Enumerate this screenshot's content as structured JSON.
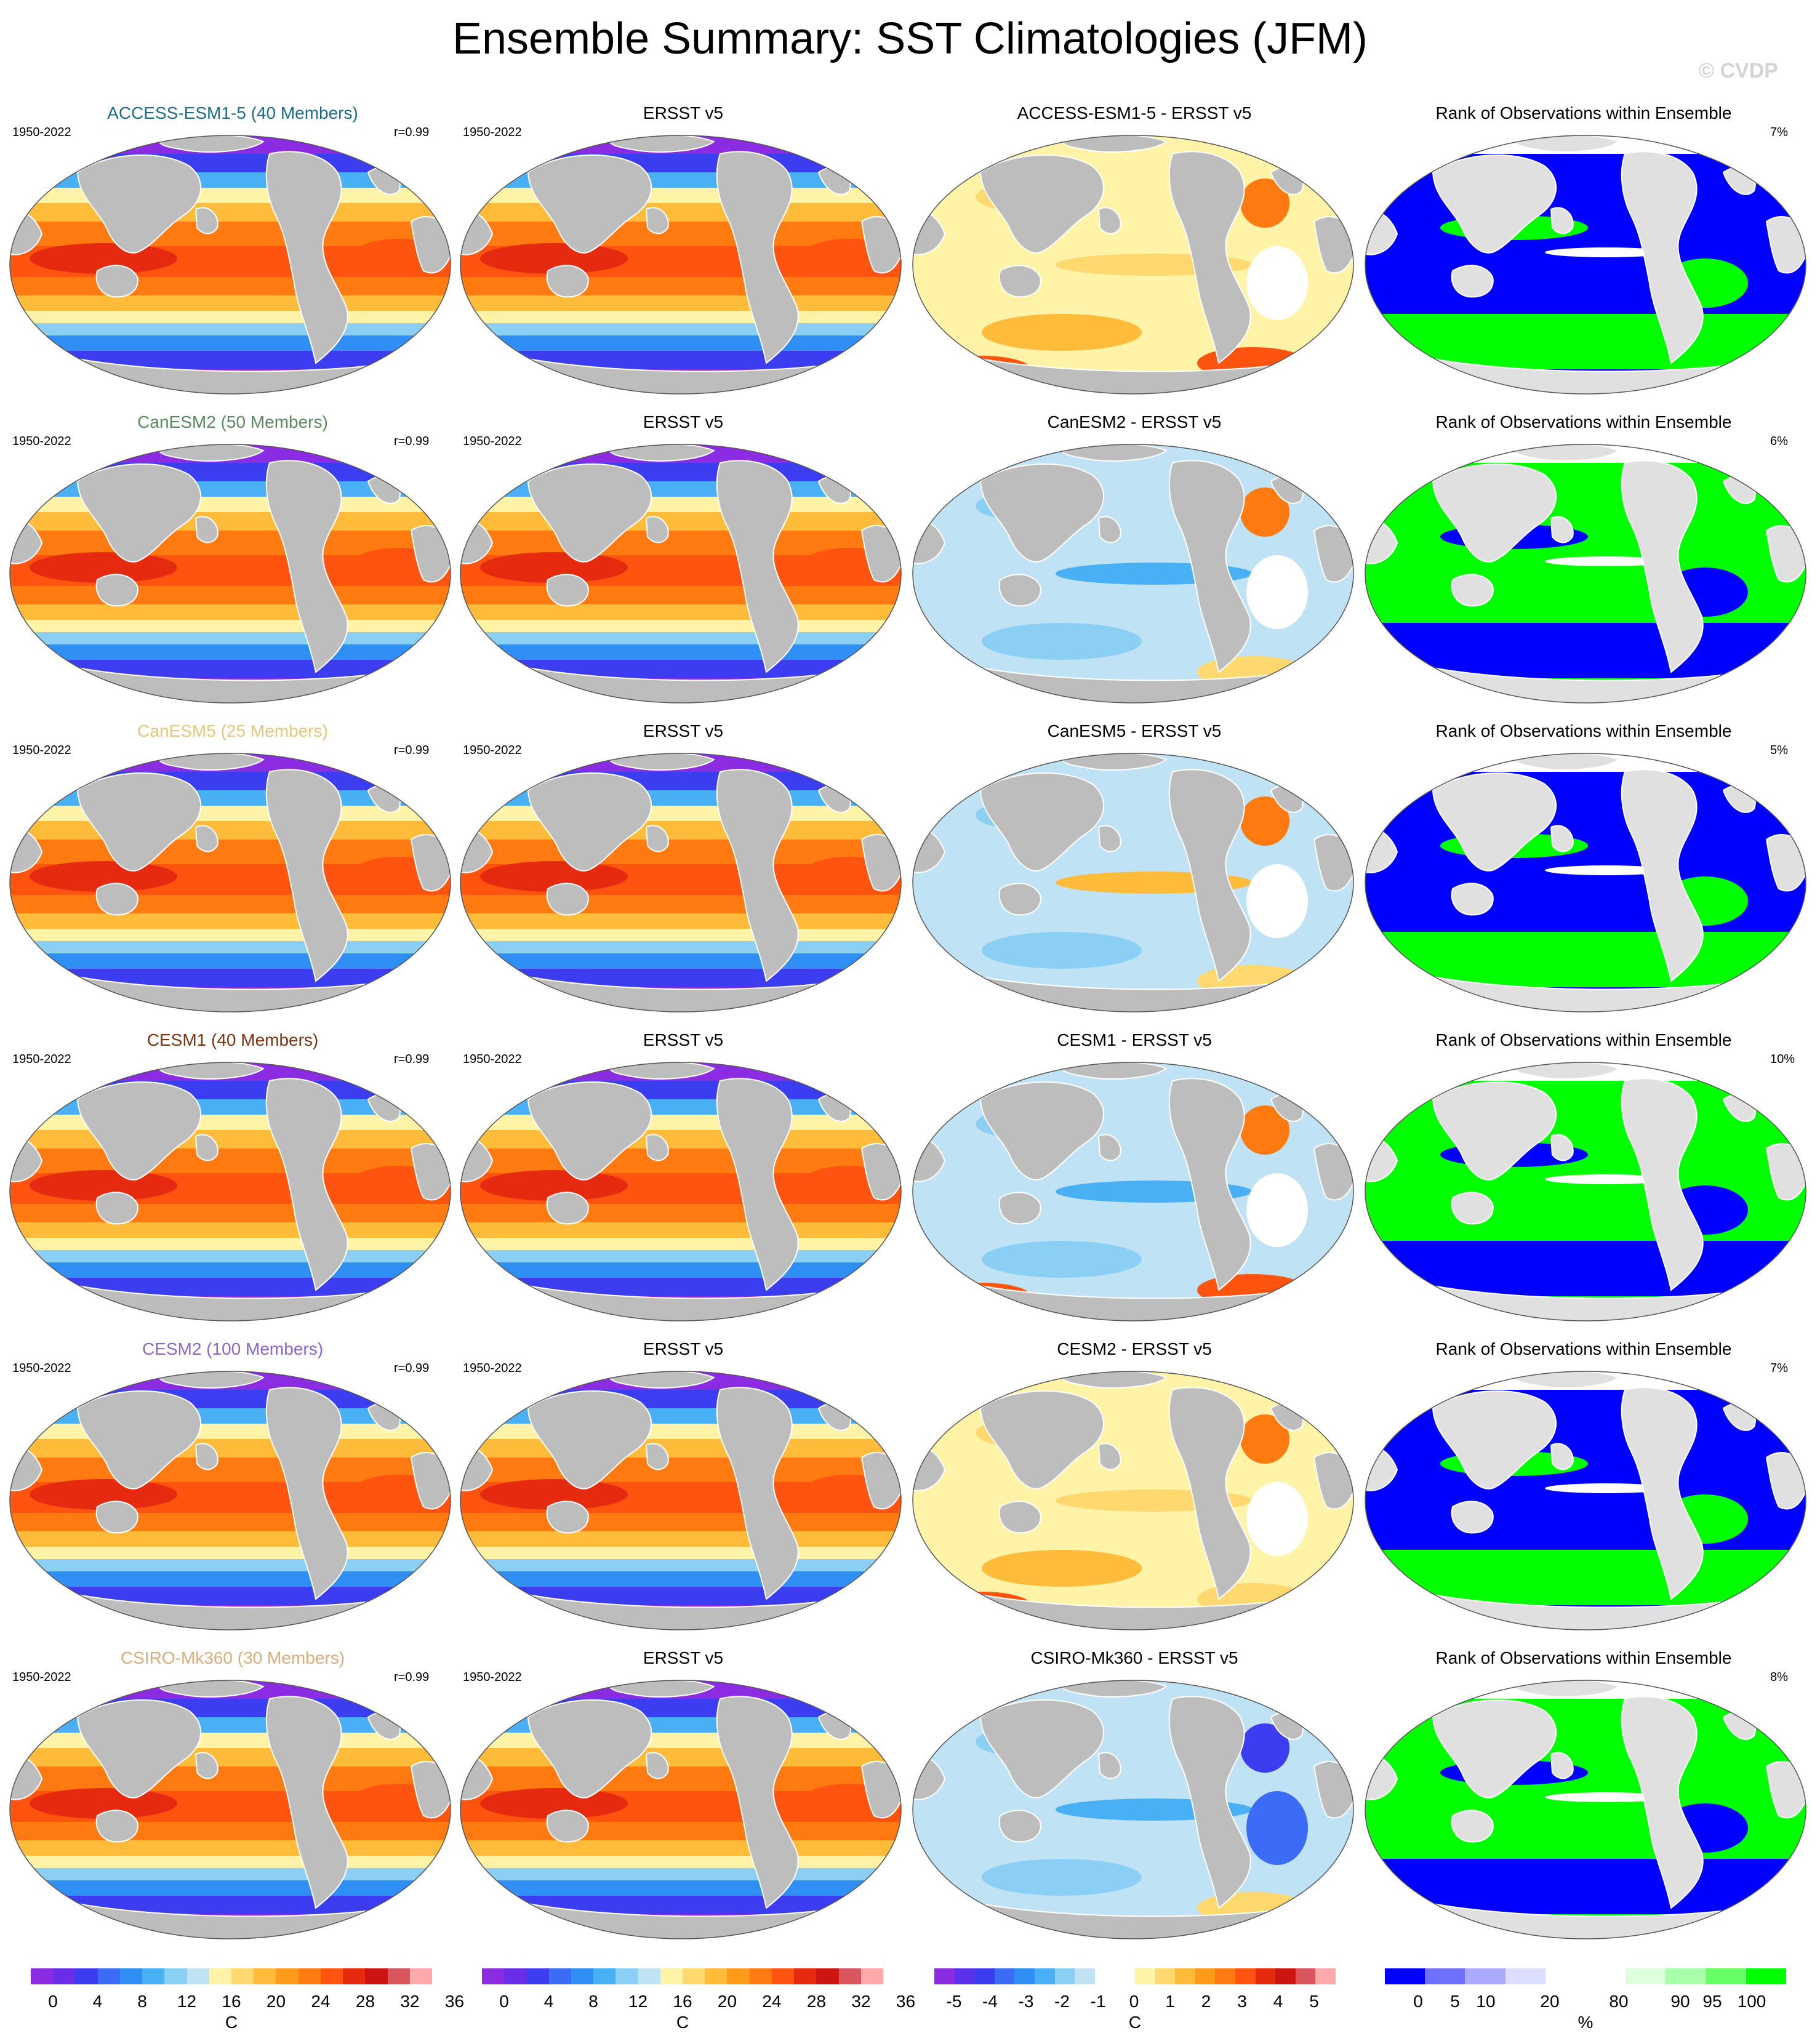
{
  "title": "Ensemble Summary: SST Climatologies (JFM)",
  "watermark": "© CVDP",
  "period": "1950-2022",
  "obs_title": "ERSST v5",
  "rank_title": "Rank of Observations within Ensemble",
  "rows": [
    {
      "model_title": "ACCESS-ESM1-5 (40 Members)",
      "title_color": "#1a6f87",
      "r": "r=0.99",
      "diff_title": "ACCESS-ESM1-5 - ERSST v5",
      "rank_pct": "7%"
    },
    {
      "model_title": "CanESM2 (50 Members)",
      "title_color": "#5a8a60",
      "r": "r=0.99",
      "diff_title": "CanESM2 - ERSST v5",
      "rank_pct": "6%"
    },
    {
      "model_title": "CanESM5 (25 Members)",
      "title_color": "#e5c77a",
      "r": "r=0.99",
      "diff_title": "CanESM5 - ERSST v5",
      "rank_pct": "5%"
    },
    {
      "model_title": "CESM1 (40 Members)",
      "title_color": "#7a3510",
      "r": "r=0.99",
      "diff_title": "CESM1 - ERSST v5",
      "rank_pct": "10%"
    },
    {
      "model_title": "CESM2 (100 Members)",
      "title_color": "#8a66cc",
      "r": "r=0.99",
      "diff_title": "CESM2 - ERSST v5",
      "rank_pct": "7%"
    },
    {
      "model_title": "CSIRO-Mk360 (30 Members)",
      "title_color": "#d9ad7c",
      "r": "r=0.99",
      "diff_title": "CSIRO-Mk360 - ERSST v5",
      "rank_pct": "8%"
    }
  ],
  "colorbars": {
    "sst": {
      "ticks": [
        "0",
        "4",
        "8",
        "12",
        "16",
        "20",
        "24",
        "28",
        "32",
        "36"
      ],
      "unit": "C",
      "colors": [
        "#8b2be2",
        "#6a2ee8",
        "#3c3cf0",
        "#3c6cf5",
        "#2f8ff5",
        "#4ab0f5",
        "#8ccff5",
        "#bfe3f5",
        "#fff3a8",
        "#ffd870",
        "#ffbb3a",
        "#ff9a1a",
        "#ff7a10",
        "#ff5410",
        "#e52a10",
        "#cc1410",
        "#d8565c",
        "#ffaaaa"
      ]
    },
    "diff": {
      "ticks": [
        "-5",
        "-4",
        "-3",
        "-2",
        "-1",
        "0",
        "1",
        "2",
        "3",
        "4",
        "5"
      ],
      "unit": "C",
      "colors": [
        "#8b2be2",
        "#5a30e8",
        "#3c3cf0",
        "#3c6cf5",
        "#2f8ff5",
        "#4ab0f5",
        "#8ccff5",
        "#bfe3f5",
        "#ffffff",
        "#ffffff",
        "#fff3a8",
        "#ffd870",
        "#ffbb3a",
        "#ff9a1a",
        "#ff7a10",
        "#ff5410",
        "#e52a10",
        "#cc1410",
        "#d8565c",
        "#ffaaaa"
      ]
    },
    "rank": {
      "ticks": [
        "0",
        "5",
        "10",
        "20",
        "80",
        "90",
        "95",
        "100"
      ],
      "unit": "%",
      "colors": [
        "#0000ff",
        "#7070ff",
        "#aaaaff",
        "#ddddff",
        "#ffffff",
        "#ffffff",
        "#ddffdd",
        "#aaffaa",
        "#66ff66",
        "#00ff00"
      ]
    }
  }
}
